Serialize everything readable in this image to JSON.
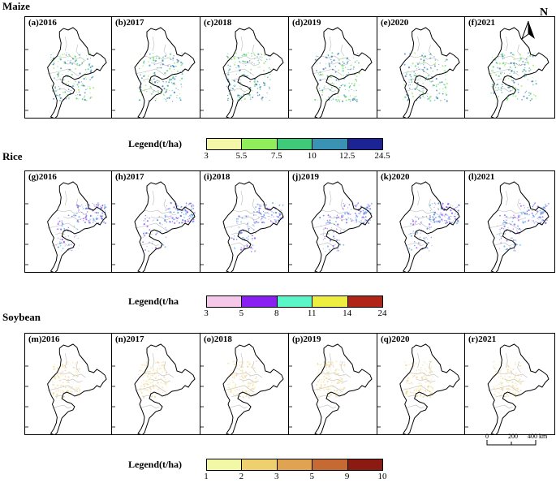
{
  "sections": [
    {
      "title": "Maize",
      "panels": [
        "(a)2016",
        "(b)2017",
        "(c)2018",
        "(d)2019",
        "(e)2020",
        "(f)2021"
      ],
      "legend": {
        "title": "Legend(t/ha)",
        "ticks": [
          "3",
          "5.5",
          "7.5",
          "10",
          "12.5",
          "24.5"
        ],
        "colors": [
          "#f4f7a8",
          "#8fee5a",
          "#3fca7a",
          "#3a93b4",
          "#1c2394"
        ]
      },
      "dot_colors": [
        "#8fee5a",
        "#3fca7a",
        "#3a93b4",
        "#2a62b8"
      ]
    },
    {
      "title": "Rice",
      "panels": [
        "(g)2016",
        "(h)2017",
        "(i)2018",
        "(j)2019",
        "(k)2020",
        "(l)2021"
      ],
      "legend": {
        "title": "Legend(t/ha",
        "ticks": [
          "3",
          "5",
          "8",
          "11",
          "14",
          "24"
        ],
        "colors": [
          "#f5c8ea",
          "#8a1ff2",
          "#5af6c8",
          "#eeee40",
          "#b02515"
        ]
      },
      "dot_colors": [
        "#3a6ad6",
        "#8a3ff2",
        "#5ab0e8",
        "#c8b4f0"
      ]
    },
    {
      "title": "Soybean",
      "panels": [
        "(m)2016",
        "(n)2017",
        "(o)2018",
        "(p)2019",
        "(q)2020",
        "(r)2021"
      ],
      "legend": {
        "title": "Legend(t/ha)",
        "ticks": [
          "1",
          "2",
          "3",
          "5",
          "9",
          "10"
        ],
        "colors": [
          "#f2f8a6",
          "#eed06e",
          "#e0a352",
          "#c66a33",
          "#8a1a12"
        ]
      },
      "dot_colors": [
        "#f0e0a0",
        "#eed06e",
        "#e8c88a",
        "#f4e8c0"
      ]
    }
  ],
  "north_arrow": "N",
  "scale_bar": {
    "labels": [
      "0",
      "200",
      "400"
    ],
    "unit": "km"
  }
}
